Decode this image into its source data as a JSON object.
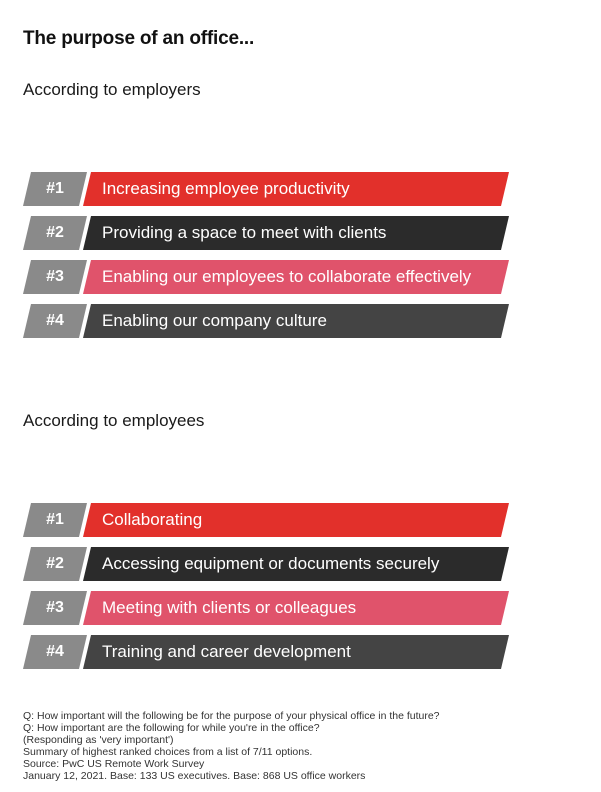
{
  "title": "The purpose of an office...",
  "sections": [
    {
      "heading": "According to employers",
      "items": [
        {
          "rank": "#1",
          "label": "Increasing employee productivity",
          "color": "#e2302b"
        },
        {
          "rank": "#2",
          "label": "Providing a space to meet with clients",
          "color": "#2b2b2b"
        },
        {
          "rank": "#3",
          "label": "Enabling our employees to collaborate effectively",
          "color": "#e0536b"
        },
        {
          "rank": "#4",
          "label": "Enabling our company culture",
          "color": "#444444"
        }
      ]
    },
    {
      "heading": "According to employees",
      "items": [
        {
          "rank": "#1",
          "label": "Collaborating",
          "color": "#e2302b"
        },
        {
          "rank": "#2",
          "label": "Accessing equipment or documents securely",
          "color": "#2b2b2b"
        },
        {
          "rank": "#3",
          "label": "Meeting with clients or colleagues",
          "color": "#e0536b"
        },
        {
          "rank": "#4",
          "label": "Training and career development",
          "color": "#444444"
        }
      ]
    }
  ],
  "footnotes": [
    "Q: How important will the following be for the purpose of your physical office in the future?",
    "Q: How important are the following for while you're in the office?",
    "(Responding as 'very important')",
    "Summary of highest ranked choices from a list of 7/11 options.",
    "Source: PwC US Remote Work Survey",
    "January 12, 2021. Base: 133 US executives. Base: 868 US office workers"
  ]
}
